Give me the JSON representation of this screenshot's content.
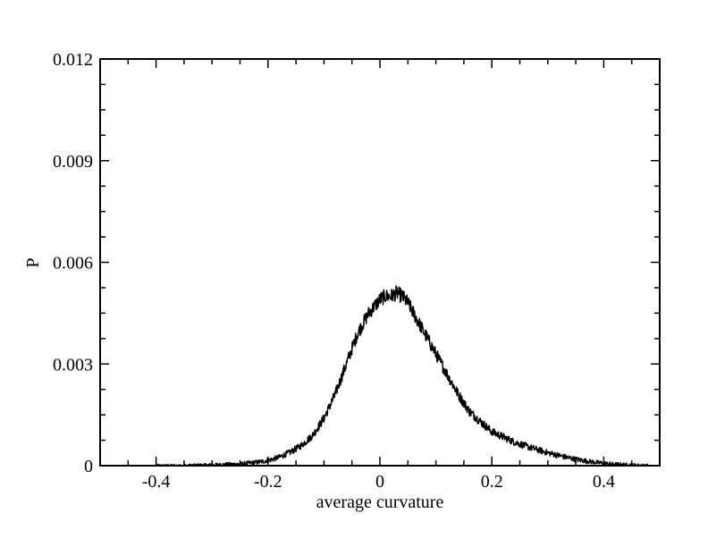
{
  "chart_data": {
    "type": "line",
    "title": "",
    "xlabel": "average curvature",
    "ylabel": "P",
    "xlim": [
      -0.5,
      0.5
    ],
    "ylim": [
      0,
      0.012
    ],
    "x_ticks": [
      -0.4,
      -0.2,
      0,
      0.2,
      0.4
    ],
    "x_tick_labels": [
      "-0.4",
      "-0.2",
      "0",
      "0.2",
      "0.4"
    ],
    "y_ticks": [
      0,
      0.003,
      0.006,
      0.009,
      0.012
    ],
    "y_tick_labels": [
      "0",
      "0.003",
      "0.006",
      "0.009",
      "0.012"
    ],
    "grid": false,
    "legend": "none",
    "line_color": "#000000",
    "series": [
      {
        "x": [
          -0.4,
          -0.35,
          -0.3,
          -0.25,
          -0.22,
          -0.2,
          -0.18,
          -0.16,
          -0.14,
          -0.12,
          -0.1,
          -0.08,
          -0.06,
          -0.04,
          -0.02,
          0.0,
          0.01,
          0.02,
          0.03,
          0.04,
          0.05,
          0.06,
          0.07,
          0.08,
          0.1,
          0.12,
          0.14,
          0.16,
          0.18,
          0.2,
          0.22,
          0.24,
          0.26,
          0.28,
          0.3,
          0.32,
          0.34,
          0.36,
          0.38,
          0.4,
          0.42,
          0.45,
          0.48
        ],
        "y": [
          0.0,
          0.0,
          2e-05,
          5e-05,
          0.0001,
          0.00015,
          0.00025,
          0.0004,
          0.0006,
          0.0009,
          0.0014,
          0.0021,
          0.003,
          0.0039,
          0.0045,
          0.0049,
          0.005,
          0.005,
          0.0051,
          0.005,
          0.0048,
          0.0045,
          0.0042,
          0.0039,
          0.0033,
          0.0027,
          0.0021,
          0.0016,
          0.0013,
          0.001,
          0.00085,
          0.0007,
          0.00058,
          0.00048,
          0.00038,
          0.0003,
          0.00022,
          0.00016,
          0.00011,
          7e-05,
          4e-05,
          2e-05,
          0.0
        ]
      }
    ]
  }
}
